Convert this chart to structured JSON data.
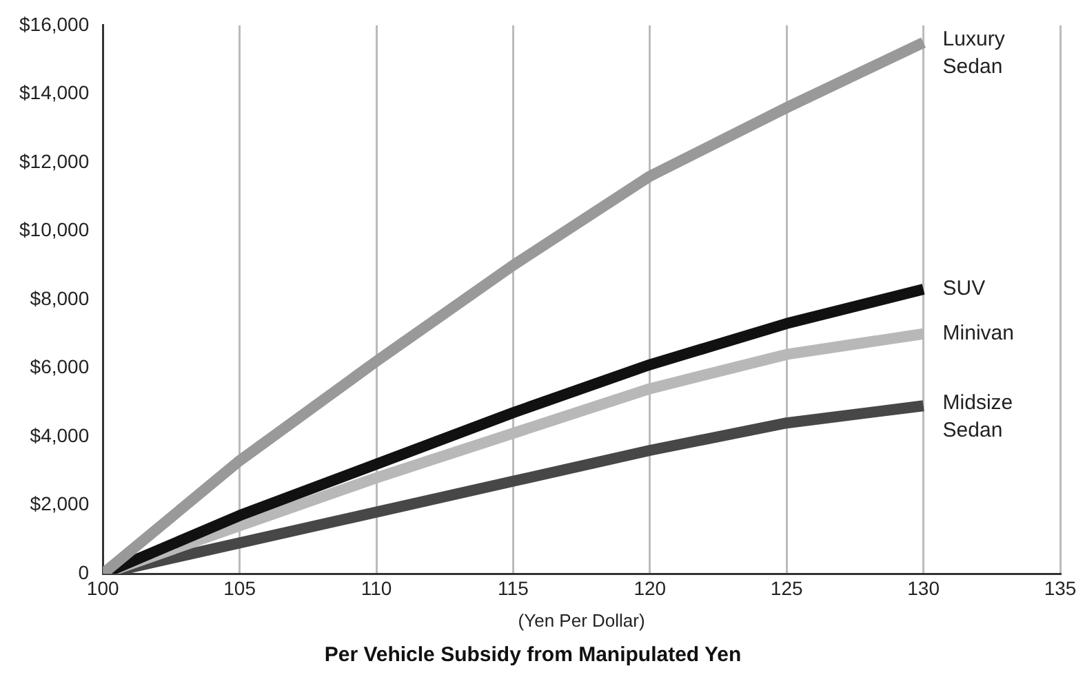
{
  "chart_data": {
    "type": "line",
    "title": "Per Vehicle Subsidy from Manipulated Yen",
    "xlabel": "(Yen Per Dollar)",
    "x": [
      100,
      105,
      110,
      115,
      120,
      125,
      130
    ],
    "series": [
      {
        "name": "Luxury Sedan",
        "color": "#999999",
        "values": [
          0,
          3300,
          6200,
          9000,
          11600,
          13600,
          15500
        ]
      },
      {
        "name": "SUV",
        "color": "#111111",
        "values": [
          0,
          1700,
          3200,
          4700,
          6100,
          7300,
          8300
        ]
      },
      {
        "name": "Minivan",
        "color": "#b8b8b8",
        "values": [
          0,
          1400,
          2800,
          4100,
          5400,
          6400,
          7000
        ]
      },
      {
        "name": "Midsize Sedan",
        "color": "#474747",
        "values": [
          0,
          900,
          1800,
          2700,
          3600,
          4400,
          4900
        ]
      }
    ],
    "xlim": [
      100,
      135
    ],
    "xticks": [
      100,
      105,
      110,
      115,
      120,
      125,
      130,
      135
    ],
    "ylim": [
      0,
      16000
    ],
    "yticks": [
      0,
      {
        "value": 2000,
        "label": "$2,000"
      },
      {
        "value": 4000,
        "label": "$4,000"
      },
      {
        "value": 6000,
        "label": "$6,000"
      },
      {
        "value": 8000,
        "label": "$8,000"
      },
      {
        "value": 10000,
        "label": "$10,000"
      },
      {
        "value": 12000,
        "label": "$12,000"
      },
      {
        "value": 14000,
        "label": "$14,000"
      },
      {
        "value": 16000,
        "label": "$16,000"
      }
    ],
    "grid": "x",
    "legend": false,
    "marker": "none",
    "line_style": "solid"
  }
}
